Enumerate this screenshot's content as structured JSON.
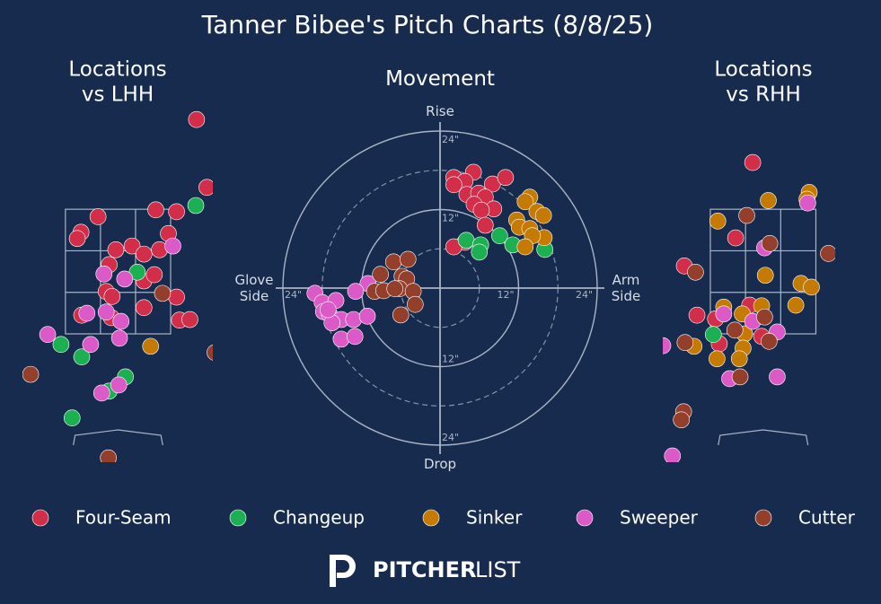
{
  "title": "Tanner Bibee's Pitch Charts (8/8/25)",
  "brand": [
    "PITCHER",
    "LIST"
  ],
  "chart_data": [
    {
      "type": "scatter",
      "title": "Locations\nvs LHH",
      "xlim": [
        -1.29,
        1.28
      ],
      "ylim": [
        -0.56,
        5.13
      ],
      "strike_zone": {
        "x": [
          -0.71,
          0.71
        ],
        "y": [
          1.5,
          3.5
        ]
      },
      "series": [
        {
          "name": "Four-Seam",
          "color": "#d22d49",
          "x": [
            1.06,
            1.2,
            -0.27,
            -0.5,
            -0.55,
            0.51,
            0.79,
            -0.03,
            0.19,
            0.35,
            0.56,
            0.68,
            -0.12,
            0.35,
            0.49,
            -0.16,
            -0.08,
            0.79,
            0.35,
            -0.49,
            -0.09,
            0.83,
            0.97
          ],
          "y": [
            4.94,
            3.85,
            3.38,
            3.13,
            3.03,
            3.49,
            3.46,
            2.85,
            2.91,
            2.78,
            2.85,
            3.11,
            2.61,
            2.35,
            2.45,
            2.18,
            2.1,
            2.09,
            1.92,
            1.8,
            1.76,
            1.72,
            1.73
          ]
        },
        {
          "name": "Changeup",
          "color": "#1db053",
          "x": [
            1.05,
            0.26,
            -0.77,
            -0.49,
            0.1,
            -0.12,
            -0.62
          ],
          "y": [
            3.56,
            2.49,
            1.33,
            1.13,
            0.81,
            0.58,
            0.15
          ]
        },
        {
          "name": "Sinker",
          "color": "#c57a02",
          "x": [
            0.44
          ],
          "y": [
            1.3
          ]
        },
        {
          "name": "Sweeper",
          "color": "#dc5ac8",
          "x": [
            0.74,
            -0.19,
            0.09,
            -0.42,
            -0.16,
            0.04,
            0.02,
            -0.37,
            -0.95,
            0.01,
            -0.22
          ],
          "y": [
            2.91,
            2.46,
            2.38,
            1.83,
            1.85,
            1.7,
            1.43,
            1.33,
            1.49,
            0.68,
            0.55
          ]
        },
        {
          "name": "Cutter",
          "color": "#933f2c",
          "x": [
            0.6,
            -1.18,
            -0.13,
            1.31
          ],
          "y": [
            2.15,
            0.85,
            -0.49,
            1.2
          ]
        }
      ]
    },
    {
      "type": "movement",
      "title": "Movement",
      "xlim": [
        -24,
        24
      ],
      "ylim": [
        -24,
        24
      ],
      "rings": [
        {
          "value": 12,
          "label": "12\""
        },
        {
          "value": 24,
          "label": "24\""
        }
      ],
      "dashed_rings": [
        6,
        18
      ],
      "axis_labels": {
        "top": "Rise",
        "bottom": "Drop",
        "left": "Glove\nSide",
        "right": "Arm\nSide"
      },
      "series": [
        {
          "name": "Four-Seam",
          "color": "#d22d49",
          "x": [
            2.1,
            5.1,
            3.8,
            8.0,
            10.0,
            2.1,
            4.1,
            5.9,
            6.9,
            5.2,
            8.2,
            6.3,
            6.9,
            3.8,
            2.1
          ],
          "y": [
            16.9,
            17.7,
            16.3,
            15.9,
            16.9,
            15.8,
            14.3,
            14.5,
            13.9,
            12.8,
            12.1,
            11.9,
            9.6,
            7.0,
            6.3
          ]
        },
        {
          "name": "Changeup",
          "color": "#1db053",
          "x": [
            4.0,
            6.2,
            6.0,
            9.1,
            11.1,
            16.0
          ],
          "y": [
            7.3,
            6.6,
            5.5,
            8.0,
            6.6,
            5.9
          ]
        },
        {
          "name": "Sinker",
          "color": "#c57a02",
          "x": [
            13.7,
            13.0,
            14.8,
            11.7,
            15.8,
            12.1,
            13.7,
            15.9,
            14.1,
            13.0
          ],
          "y": [
            13.9,
            13.2,
            11.7,
            10.4,
            11.1,
            9.3,
            9.1,
            7.7,
            8.0,
            6.3
          ]
        },
        {
          "name": "Sweeper",
          "color": "#dc5ac8",
          "x": [
            -19.1,
            -18.0,
            -15.9,
            -17.8,
            -16.9,
            -15.1,
            -13.2,
            -11.1,
            -11.0,
            -12.9,
            -15.1,
            -13.0,
            -16.5,
            -17.1
          ],
          "y": [
            -0.8,
            -2.2,
            -1.9,
            -3.6,
            -4.0,
            -4.8,
            -4.8,
            -4.3,
            0.7,
            -0.5,
            -7.8,
            -7.4,
            -5.3,
            -3.3
          ]
        },
        {
          "name": "Cutter",
          "color": "#933f2c",
          "x": [
            -7.1,
            -4.9,
            -9.1,
            -5.8,
            -5.1,
            -10.0,
            -8.6,
            -6.2,
            -4.1,
            -3.8,
            -6.0,
            -6.9
          ],
          "y": [
            4.0,
            4.4,
            2.1,
            1.8,
            1.4,
            -0.5,
            -0.4,
            -0.1,
            -0.5,
            -2.5,
            -4.1,
            -0.1
          ]
        }
      ]
    },
    {
      "type": "scatter",
      "title": "Locations\nvs RHH",
      "xlim": [
        -1.35,
        0.97
      ],
      "ylim": [
        -0.56,
        5.13
      ],
      "strike_zone": {
        "x": [
          -0.71,
          0.71
        ],
        "y": [
          1.5,
          3.5
        ]
      },
      "series": [
        {
          "name": "Four-Seam",
          "color": "#d22d49",
          "x": [
            -0.14,
            -0.37,
            -1.06,
            -0.89,
            -0.64,
            -0.59,
            -0.18,
            -0.02
          ],
          "y": [
            4.25,
            3.04,
            2.59,
            1.8,
            1.74,
            1.34,
            1.96,
            1.46
          ]
        },
        {
          "name": "Changeup",
          "color": "#1db053",
          "x": [
            -0.67
          ],
          "y": [
            1.49
          ]
        },
        {
          "name": "Sinker",
          "color": "#c57a02",
          "x": [
            0.07,
            0.62,
            0.59,
            -0.61,
            0.03,
            0.51,
            0.65,
            0.44,
            -0.53,
            -0.02,
            -0.28,
            -0.25,
            -0.27,
            -0.62,
            -0.32,
            -0.93
          ],
          "y": [
            3.64,
            3.77,
            3.66,
            3.31,
            2.44,
            2.31,
            2.25,
            1.96,
            1.93,
            1.95,
            1.82,
            1.5,
            1.27,
            1.1,
            1.1,
            1.3
          ]
        },
        {
          "name": "Sweeper",
          "color": "#dc5ac8",
          "x": [
            0.6,
            0.02,
            -0.53,
            -0.14,
            0.19,
            -0.45,
            0.19,
            -1.22,
            -1.35
          ],
          "y": [
            3.6,
            2.88,
            1.82,
            1.7,
            1.53,
            0.78,
            0.81,
            -0.46,
            1.31
          ]
        },
        {
          "name": "Cutter",
          "color": "#933f2c",
          "x": [
            -0.22,
            0.09,
            -0.91,
            0.88,
            0.02,
            -0.38,
            0.08,
            -1.05,
            -0.31,
            -1.07,
            -1.1
          ],
          "y": [
            3.4,
            2.95,
            2.49,
            2.79,
            1.77,
            1.56,
            1.38,
            1.36,
            0.81,
            0.25,
            0.12
          ]
        }
      ]
    }
  ]
}
